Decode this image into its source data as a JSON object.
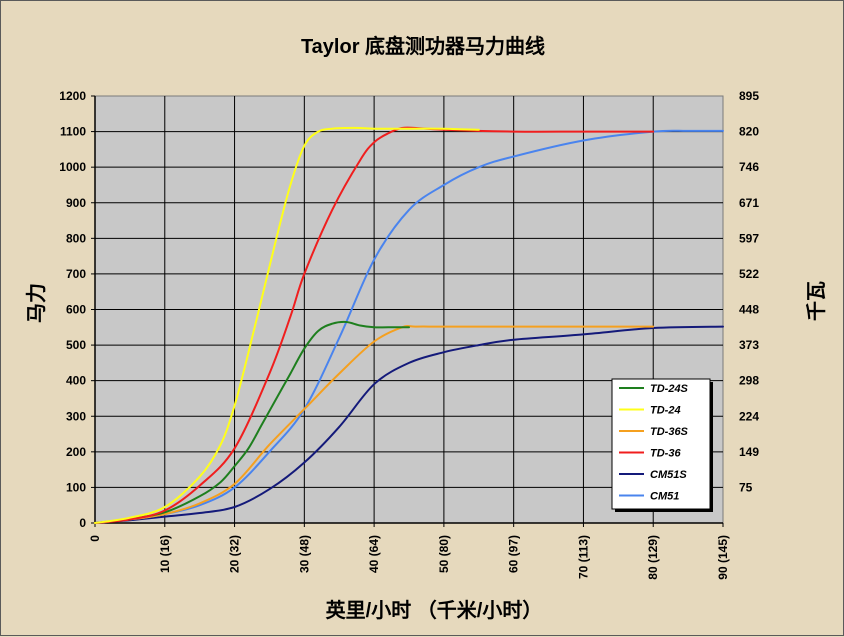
{
  "chart_data": {
    "type": "line",
    "title": "Taylor 底盘测功器马力曲线",
    "xlabel": "英里/小时  （千米/小时）",
    "ylabel": "马力",
    "ylabel_right": "千瓦",
    "xlim": [
      0,
      90
    ],
    "ylim": [
      0,
      1200
    ],
    "grid": true,
    "legend_position": "bottom-right",
    "x_ticks": [
      "0",
      "10 (16)",
      "20 (32)",
      "30 (48)",
      "40 (64)",
      "50 (80)",
      "60 (97)",
      "70 (113)",
      "80 (129)",
      "90 (145)"
    ],
    "y_ticks": [
      "0",
      "100",
      "200",
      "300",
      "400",
      "500",
      "600",
      "700",
      "800",
      "900",
      "1000",
      "1100",
      "1200"
    ],
    "y_right_ticks": [
      "75",
      "149",
      "224",
      "298",
      "373",
      "448",
      "522",
      "597",
      "671",
      "746",
      "820",
      "895"
    ],
    "series": [
      {
        "name": "TD-24S",
        "color": "#1e7f1e",
        "x": [
          0,
          5,
          10,
          15,
          18,
          20,
          22,
          24,
          26,
          28,
          30,
          32,
          34,
          36,
          38,
          40,
          42,
          45
        ],
        "y": [
          0,
          12,
          30,
          75,
          115,
          160,
          210,
          280,
          350,
          420,
          490,
          540,
          560,
          565,
          555,
          550,
          550,
          550
        ]
      },
      {
        "name": "TD-24",
        "color": "#ffff1a",
        "x": [
          0,
          5,
          10,
          15,
          18,
          20,
          22,
          24,
          26,
          28,
          30,
          32,
          34,
          36,
          38,
          40,
          45,
          50,
          55
        ],
        "y": [
          0,
          15,
          45,
          130,
          220,
          330,
          480,
          640,
          800,
          950,
          1060,
          1100,
          1108,
          1110,
          1110,
          1108,
          1108,
          1108,
          1105
        ]
      },
      {
        "name": "TD-36S",
        "color": "#f5a01f",
        "x": [
          0,
          5,
          10,
          15,
          20,
          25,
          30,
          35,
          40,
          44,
          46,
          50,
          60,
          70,
          80
        ],
        "y": [
          0,
          10,
          25,
          55,
          110,
          220,
          320,
          420,
          510,
          550,
          552,
          552,
          552,
          552,
          552
        ]
      },
      {
        "name": "TD-36",
        "color": "#f01e1e",
        "x": [
          0,
          5,
          10,
          15,
          20,
          25,
          28,
          30,
          34,
          38,
          40,
          42,
          44,
          46,
          50,
          60,
          70,
          80
        ],
        "y": [
          0,
          10,
          35,
          105,
          210,
          420,
          580,
          700,
          880,
          1020,
          1070,
          1095,
          1110,
          1110,
          1105,
          1100,
          1100,
          1100
        ]
      },
      {
        "name": "CM51S",
        "color": "#141a7a",
        "x": [
          0,
          5,
          10,
          15,
          20,
          25,
          30,
          35,
          40,
          45,
          50,
          55,
          60,
          70,
          80,
          90
        ],
        "y": [
          0,
          8,
          18,
          28,
          45,
          95,
          170,
          270,
          390,
          450,
          480,
          500,
          515,
          530,
          548,
          552
        ]
      },
      {
        "name": "CM51",
        "color": "#4a84ee",
        "x": [
          0,
          5,
          10,
          15,
          20,
          25,
          30,
          35,
          40,
          45,
          50,
          55,
          60,
          70,
          80,
          85,
          90
        ],
        "y": [
          0,
          10,
          25,
          50,
          100,
          200,
          320,
          520,
          740,
          880,
          950,
          1000,
          1030,
          1075,
          1100,
          1102,
          1102
        ]
      }
    ]
  }
}
